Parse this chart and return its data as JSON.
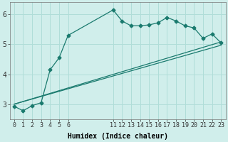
{
  "bg_color": "#d0eeeb",
  "line_color": "#1a7a6e",
  "grid_color": "#b0ddd8",
  "xlabel": "Humidex (Indice chaleur)",
  "xlim": [
    -0.5,
    23.5
  ],
  "ylim": [
    2.5,
    6.4
  ],
  "yticks": [
    3,
    4,
    5,
    6
  ],
  "xticks": [
    0,
    1,
    2,
    3,
    4,
    5,
    6,
    11,
    12,
    13,
    14,
    15,
    16,
    17,
    18,
    19,
    20,
    21,
    22,
    23
  ],
  "line1_x": [
    0,
    1,
    2,
    3,
    4,
    5,
    6,
    11,
    12,
    13,
    14,
    15,
    16,
    17,
    18,
    19,
    20,
    21,
    22,
    23
  ],
  "line1_y": [
    2.93,
    2.78,
    2.95,
    3.05,
    4.15,
    4.55,
    5.3,
    6.15,
    5.78,
    5.62,
    5.62,
    5.65,
    5.72,
    5.9,
    5.78,
    5.62,
    5.55,
    5.2,
    5.35,
    5.05
  ],
  "line2_x": [
    0,
    23
  ],
  "line2_y": [
    3.0,
    5.08
  ],
  "line3_x": [
    0,
    23
  ],
  "line3_y": [
    3.0,
    4.97
  ],
  "markersize": 2.5,
  "linewidth": 0.9,
  "tick_fontsize": 6,
  "xlabel_fontsize": 7,
  "ytick_fontsize": 7
}
